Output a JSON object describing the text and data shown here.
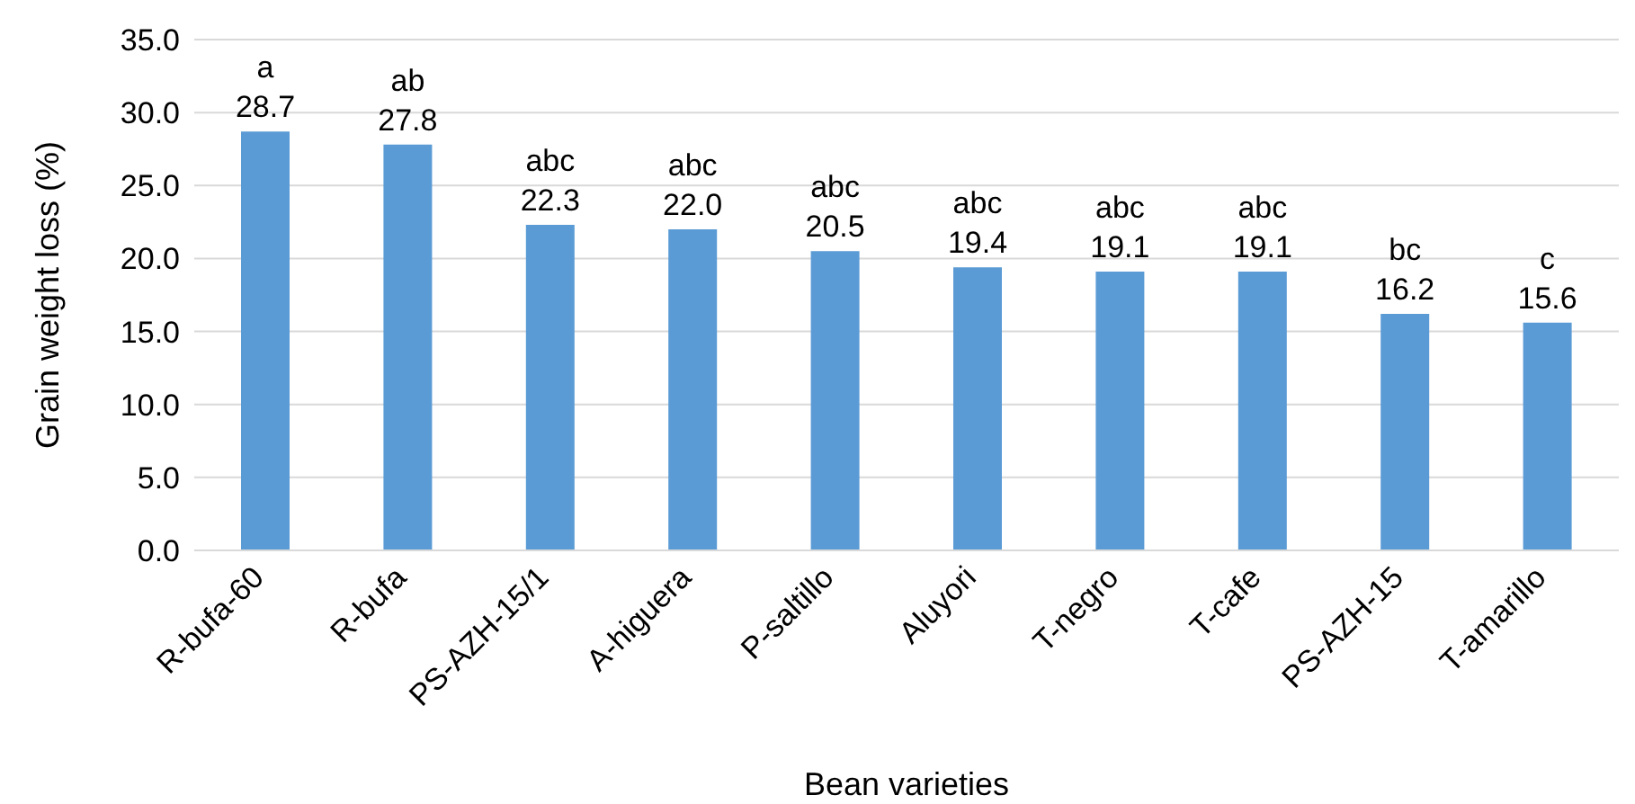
{
  "chart_data": {
    "type": "bar",
    "xlabel": "Bean varieties",
    "ylabel": "Grain weight loss (%)",
    "categories": [
      "R-bufa-60",
      "R-bufa",
      "PS-AZH-15/1",
      "A-higuera",
      "P-saltillo",
      "Aluyori",
      "T-negro",
      "T-cafe",
      "PS-AZH-15",
      "T-amarillo"
    ],
    "values": [
      28.7,
      27.8,
      22.3,
      22.0,
      20.5,
      19.4,
      19.1,
      19.1,
      16.2,
      15.6
    ],
    "color": "#5b9bd5",
    "value_labels": [
      "28.7",
      "27.8",
      "22.3",
      "22.0",
      "20.5",
      "19.4",
      "19.1",
      "19.1",
      "16.2",
      "15.6"
    ],
    "annotations": [
      {
        "text": "a",
        "x": "R-bufa-60",
        "y": 28.7
      },
      {
        "text": "ab",
        "x": "R-bufa",
        "y": 27.8
      },
      {
        "text": "abc",
        "x": "PS-AZH-15/1",
        "y": 22.3
      },
      {
        "text": "abc",
        "x": "A-higuera",
        "y": 22.0
      },
      {
        "text": "abc",
        "x": "P-saltillo",
        "y": 20.5
      },
      {
        "text": "abc",
        "x": "Aluyori",
        "y": 19.4
      },
      {
        "text": "abc",
        "x": "T-negro",
        "y": 19.1
      },
      {
        "text": "abc",
        "x": "T-cafe",
        "y": 19.1
      },
      {
        "text": "bc",
        "x": "PS-AZH-15",
        "y": 16.2
      },
      {
        "text": "c",
        "x": "T-amarillo",
        "y": 15.6
      }
    ],
    "ylim": [
      0,
      35
    ],
    "yticks": [
      {
        "value": 0,
        "label": "0.0"
      },
      {
        "value": 5,
        "label": "5.0"
      },
      {
        "value": 10,
        "label": "10.0"
      },
      {
        "value": 15,
        "label": "15.0"
      },
      {
        "value": 20,
        "label": "20.0"
      },
      {
        "value": 25,
        "label": "25.0"
      },
      {
        "value": 30,
        "label": "30.0"
      },
      {
        "value": 35,
        "label": "35.0"
      }
    ],
    "grid": "y",
    "legend": false
  }
}
